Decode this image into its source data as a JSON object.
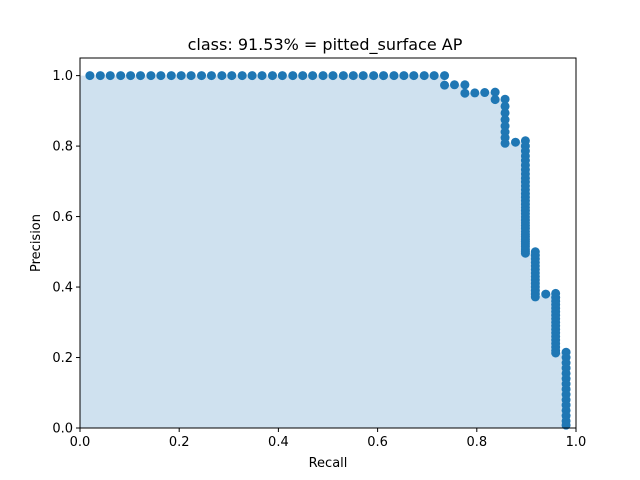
{
  "chart_data": {
    "type": "scatter",
    "title": "class: 91.53% = pitted_surface AP",
    "xlabel": "Recall",
    "ylabel": "Precision",
    "xlim": [
      0.0,
      1.0
    ],
    "ylim": [
      0.0,
      1.05
    ],
    "xticks": [
      "0.0",
      "0.2",
      "0.4",
      "0.6",
      "0.8",
      "1.0"
    ],
    "yticks": [
      "0.0",
      "0.2",
      "0.4",
      "0.6",
      "0.8",
      "1.0"
    ],
    "grid": false,
    "series_color": "#1f77b4",
    "fill_color": "#cfe1ef",
    "points": [
      [
        0.02,
        1.0
      ],
      [
        0.041,
        1.0
      ],
      [
        0.061,
        1.0
      ],
      [
        0.082,
        1.0
      ],
      [
        0.102,
        1.0
      ],
      [
        0.122,
        1.0
      ],
      [
        0.143,
        1.0
      ],
      [
        0.163,
        1.0
      ],
      [
        0.184,
        1.0
      ],
      [
        0.204,
        1.0
      ],
      [
        0.224,
        1.0
      ],
      [
        0.245,
        1.0
      ],
      [
        0.265,
        1.0
      ],
      [
        0.286,
        1.0
      ],
      [
        0.306,
        1.0
      ],
      [
        0.327,
        1.0
      ],
      [
        0.347,
        1.0
      ],
      [
        0.367,
        1.0
      ],
      [
        0.388,
        1.0
      ],
      [
        0.408,
        1.0
      ],
      [
        0.429,
        1.0
      ],
      [
        0.449,
        1.0
      ],
      [
        0.469,
        1.0
      ],
      [
        0.49,
        1.0
      ],
      [
        0.51,
        1.0
      ],
      [
        0.531,
        1.0
      ],
      [
        0.551,
        1.0
      ],
      [
        0.571,
        1.0
      ],
      [
        0.592,
        1.0
      ],
      [
        0.612,
        1.0
      ],
      [
        0.633,
        1.0
      ],
      [
        0.653,
        1.0
      ],
      [
        0.673,
        1.0
      ],
      [
        0.694,
        1.0
      ],
      [
        0.714,
        1.0
      ],
      [
        0.735,
        1.0
      ],
      [
        0.735,
        0.973
      ],
      [
        0.755,
        0.974
      ],
      [
        0.776,
        0.974
      ],
      [
        0.776,
        0.95
      ],
      [
        0.796,
        0.951
      ],
      [
        0.816,
        0.952
      ],
      [
        0.837,
        0.953
      ],
      [
        0.837,
        0.932
      ],
      [
        0.857,
        0.933
      ],
      [
        0.857,
        0.913
      ],
      [
        0.857,
        0.894
      ],
      [
        0.857,
        0.875
      ],
      [
        0.857,
        0.857
      ],
      [
        0.857,
        0.84
      ],
      [
        0.857,
        0.824
      ],
      [
        0.857,
        0.808
      ],
      [
        0.878,
        0.811
      ],
      [
        0.898,
        0.815
      ],
      [
        0.898,
        0.8
      ],
      [
        0.898,
        0.786
      ],
      [
        0.898,
        0.772
      ],
      [
        0.898,
        0.759
      ],
      [
        0.898,
        0.746
      ],
      [
        0.898,
        0.733
      ],
      [
        0.898,
        0.721
      ],
      [
        0.898,
        0.709
      ],
      [
        0.898,
        0.698
      ],
      [
        0.898,
        0.687
      ],
      [
        0.898,
        0.676
      ],
      [
        0.898,
        0.665
      ],
      [
        0.898,
        0.655
      ],
      [
        0.898,
        0.645
      ],
      [
        0.898,
        0.635
      ],
      [
        0.898,
        0.626
      ],
      [
        0.898,
        0.617
      ],
      [
        0.898,
        0.608
      ],
      [
        0.898,
        0.599
      ],
      [
        0.898,
        0.59
      ],
      [
        0.898,
        0.582
      ],
      [
        0.898,
        0.574
      ],
      [
        0.898,
        0.566
      ],
      [
        0.898,
        0.558
      ],
      [
        0.898,
        0.55
      ],
      [
        0.898,
        0.543
      ],
      [
        0.898,
        0.536
      ],
      [
        0.898,
        0.529
      ],
      [
        0.898,
        0.522
      ],
      [
        0.898,
        0.515
      ],
      [
        0.898,
        0.508
      ],
      [
        0.898,
        0.502
      ],
      [
        0.898,
        0.496
      ],
      [
        0.918,
        0.5
      ],
      [
        0.918,
        0.49
      ],
      [
        0.918,
        0.48
      ],
      [
        0.918,
        0.47
      ],
      [
        0.918,
        0.46
      ],
      [
        0.918,
        0.45
      ],
      [
        0.918,
        0.44
      ],
      [
        0.918,
        0.43
      ],
      [
        0.918,
        0.42
      ],
      [
        0.918,
        0.41
      ],
      [
        0.918,
        0.4
      ],
      [
        0.918,
        0.39
      ],
      [
        0.918,
        0.38
      ],
      [
        0.918,
        0.372
      ],
      [
        0.939,
        0.38
      ],
      [
        0.959,
        0.382
      ],
      [
        0.959,
        0.37
      ],
      [
        0.959,
        0.36
      ],
      [
        0.959,
        0.35
      ],
      [
        0.959,
        0.34
      ],
      [
        0.959,
        0.33
      ],
      [
        0.959,
        0.32
      ],
      [
        0.959,
        0.31
      ],
      [
        0.959,
        0.3
      ],
      [
        0.959,
        0.29
      ],
      [
        0.959,
        0.28
      ],
      [
        0.959,
        0.27
      ],
      [
        0.959,
        0.26
      ],
      [
        0.959,
        0.25
      ],
      [
        0.959,
        0.24
      ],
      [
        0.959,
        0.23
      ],
      [
        0.959,
        0.22
      ],
      [
        0.959,
        0.213
      ],
      [
        0.98,
        0.215
      ],
      [
        0.98,
        0.2
      ],
      [
        0.98,
        0.185
      ],
      [
        0.98,
        0.17
      ],
      [
        0.98,
        0.155
      ],
      [
        0.98,
        0.14
      ],
      [
        0.98,
        0.125
      ],
      [
        0.98,
        0.11
      ],
      [
        0.98,
        0.095
      ],
      [
        0.98,
        0.08
      ],
      [
        0.98,
        0.065
      ],
      [
        0.98,
        0.05
      ],
      [
        0.98,
        0.035
      ],
      [
        0.98,
        0.02
      ],
      [
        0.98,
        0.008
      ]
    ]
  }
}
